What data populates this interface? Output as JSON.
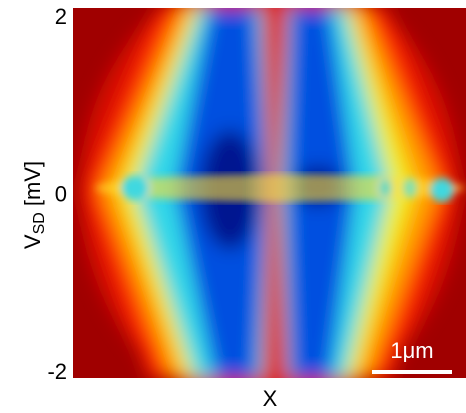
{
  "chart_data": {
    "type": "heatmap",
    "x_label": "X",
    "y_label": {
      "symbol": "V",
      "subscript": "SD",
      "unit": "[mV]"
    },
    "ylim": [
      -2,
      2
    ],
    "yticks": [
      -2,
      0,
      2
    ],
    "scale_bar": "1μm"
  }
}
